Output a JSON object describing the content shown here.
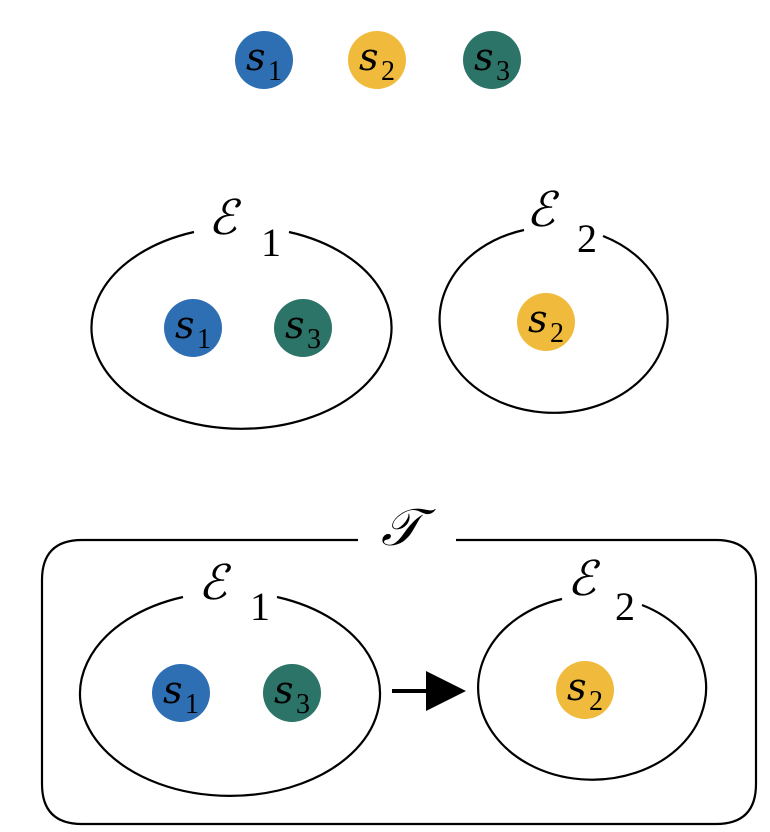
{
  "colors": {
    "s1": "#2e6fb4",
    "s2": "#f0bb3c",
    "s3": "#2c7368"
  },
  "tokens": {
    "s1": {
      "symbol": "s",
      "subscript": "1"
    },
    "s2": {
      "symbol": "s",
      "subscript": "2"
    },
    "s3": {
      "symbol": "s",
      "subscript": "3"
    }
  },
  "legend": [
    "s1",
    "s2",
    "s3"
  ],
  "environments": {
    "e1": {
      "symbol": "ℰ",
      "subscript": "1",
      "members": [
        "s1",
        "s3"
      ]
    },
    "e2": {
      "symbol": "ℰ",
      "subscript": "2",
      "members": [
        "s2"
      ]
    }
  },
  "trajectory": {
    "symbol": "𝒯",
    "sequence": [
      "e1",
      "e2"
    ]
  }
}
